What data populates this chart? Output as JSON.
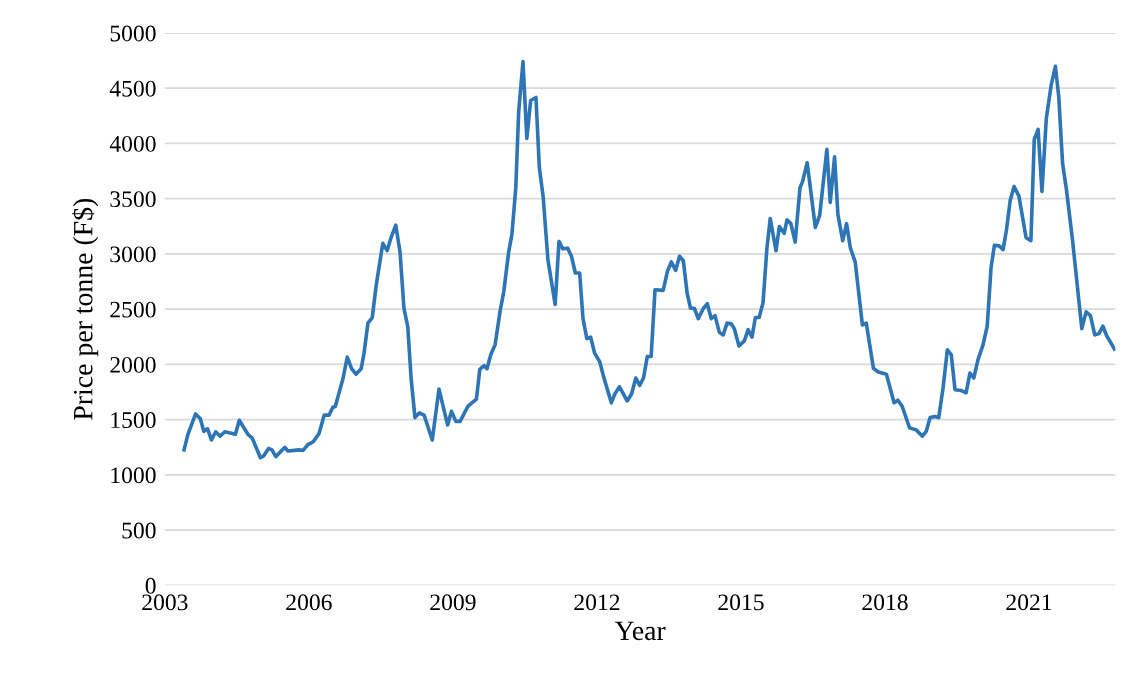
{
  "chart_data": {
    "type": "line",
    "xlabel": "Year",
    "ylabel": "Price per tonne (F$)",
    "xlim": [
      2003,
      2022.8
    ],
    "xticks": [
      2003,
      2006,
      2009,
      2012,
      2015,
      2018,
      2021
    ],
    "ylim": [
      0,
      5000
    ],
    "yticks": [
      0,
      500,
      1000,
      1500,
      2000,
      2500,
      3000,
      3500,
      4000,
      4500,
      5000
    ],
    "grid": "y",
    "marker": "none",
    "line_style": "solid",
    "series": [
      {
        "color": "#2e75b6",
        "x": [
          2003.4,
          2003.48,
          2003.64,
          2003.74,
          2003.81,
          2003.89,
          2003.97,
          2004.06,
          2004.15,
          2004.25,
          2004.47,
          2004.55,
          2004.73,
          2004.82,
          2004.99,
          2005.06,
          2005.16,
          2005.23,
          2005.31,
          2005.5,
          2005.56,
          2005.7,
          2005.78,
          2005.88,
          2005.98,
          2006.09,
          2006.21,
          2006.32,
          2006.42,
          2006.5,
          2006.55,
          2006.71,
          2006.8,
          2006.89,
          2006.98,
          2007.09,
          2007.15,
          2007.23,
          2007.32,
          2007.4,
          2007.54,
          2007.63,
          2007.71,
          2007.81,
          2007.9,
          2007.98,
          2008.06,
          2008.13,
          2008.21,
          2008.3,
          2008.4,
          2008.57,
          2008.71,
          2008.89,
          2008.97,
          2009.06,
          2009.15,
          2009.31,
          2009.49,
          2009.56,
          2009.65,
          2009.71,
          2009.79,
          2009.88,
          2009.98,
          2010.06,
          2010.16,
          2010.23,
          2010.31,
          2010.37,
          2010.46,
          2010.54,
          2010.62,
          2010.73,
          2010.8,
          2010.88,
          2010.98,
          2011.13,
          2011.21,
          2011.29,
          2011.39,
          2011.47,
          2011.55,
          2011.64,
          2011.71,
          2011.79,
          2011.87,
          2011.95,
          2012.06,
          2012.14,
          2012.3,
          2012.37,
          2012.47,
          2012.63,
          2012.72,
          2012.81,
          2012.89,
          2012.97,
          2013.05,
          2013.13,
          2013.21,
          2013.38,
          2013.47,
          2013.55,
          2013.64,
          2013.72,
          2013.8,
          2013.88,
          2013.95,
          2014.03,
          2014.11,
          2014.22,
          2014.3,
          2014.38,
          2014.46,
          2014.55,
          2014.63,
          2014.71,
          2014.8,
          2014.86,
          2014.96,
          2015.07,
          2015.15,
          2015.23,
          2015.3,
          2015.38,
          2015.46,
          2015.54,
          2015.61,
          2015.73,
          2015.8,
          2015.9,
          2015.96,
          2016.04,
          2016.13,
          2016.23,
          2016.28,
          2016.38,
          2016.47,
          2016.55,
          2016.64,
          2016.79,
          2016.86,
          2016.95,
          2017.02,
          2017.12,
          2017.2,
          2017.28,
          2017.38,
          2017.53,
          2017.61,
          2017.76,
          2017.86,
          2018.03,
          2018.19,
          2018.27,
          2018.36,
          2018.51,
          2018.65,
          2018.78,
          2018.86,
          2018.94,
          2019.04,
          2019.12,
          2019.21,
          2019.3,
          2019.38,
          2019.46,
          2019.59,
          2019.69,
          2019.77,
          2019.85,
          2019.94,
          2020.04,
          2020.13,
          2020.21,
          2020.28,
          2020.38,
          2020.46,
          2020.53,
          2020.61,
          2020.69,
          2020.79,
          2020.94,
          2021.04,
          2021.11,
          2021.19,
          2021.27,
          2021.36,
          2021.46,
          2021.55,
          2021.62,
          2021.7,
          2021.78,
          2021.91,
          2022.1,
          2022.19,
          2022.28,
          2022.37,
          2022.46,
          2022.54,
          2022.62,
          2022.7,
          2022.78
        ],
        "values": [
          1226,
          1367,
          1551,
          1508,
          1394,
          1417,
          1316,
          1390,
          1350,
          1390,
          1367,
          1494,
          1367,
          1333,
          1155,
          1172,
          1239,
          1226,
          1165,
          1249,
          1216,
          1222,
          1226,
          1222,
          1273,
          1300,
          1373,
          1541,
          1541,
          1612,
          1619,
          1870,
          2065,
          1961,
          1911,
          1961,
          2105,
          2374,
          2424,
          2710,
          3096,
          3029,
          3146,
          3261,
          3012,
          2508,
          2341,
          1870,
          1518,
          1561,
          1541,
          1316,
          1776,
          1451,
          1575,
          1484,
          1484,
          1619,
          1686,
          1954,
          1988,
          1961,
          2089,
          2179,
          2475,
          2660,
          3012,
          3180,
          3600,
          4288,
          4741,
          4046,
          4389,
          4416,
          3784,
          3516,
          2945,
          2542,
          3113,
          3046,
          3052,
          2979,
          2827,
          2827,
          2414,
          2233,
          2246,
          2105,
          2022,
          1887,
          1652,
          1729,
          1797,
          1669,
          1729,
          1877,
          1810,
          1877,
          2072,
          2072,
          2676,
          2670,
          2844,
          2928,
          2851,
          2979,
          2938,
          2643,
          2508,
          2508,
          2414,
          2508,
          2549,
          2414,
          2441,
          2290,
          2267,
          2374,
          2367,
          2324,
          2166,
          2213,
          2314,
          2246,
          2424,
          2424,
          2559,
          3046,
          3321,
          3029,
          3247,
          3187,
          3308,
          3274,
          3106,
          3600,
          3650,
          3825,
          3516,
          3240,
          3348,
          3946,
          3466,
          3879,
          3355,
          3120,
          3274,
          3052,
          2928,
          2357,
          2374,
          1964,
          1931,
          1911,
          1652,
          1676,
          1619,
          1427,
          1407,
          1350,
          1394,
          1518,
          1528,
          1518,
          1786,
          2132,
          2089,
          1770,
          1763,
          1743,
          1921,
          1877,
          2045,
          2173,
          2347,
          2877,
          3079,
          3073,
          3039,
          3214,
          3489,
          3610,
          3523,
          3146,
          3120,
          4036,
          4127,
          3566,
          4221,
          4523,
          4698,
          4423,
          3818,
          3583,
          3113,
          2324,
          2475,
          2441,
          2267,
          2280,
          2347,
          2257,
          2200,
          2139
        ]
      }
    ]
  }
}
